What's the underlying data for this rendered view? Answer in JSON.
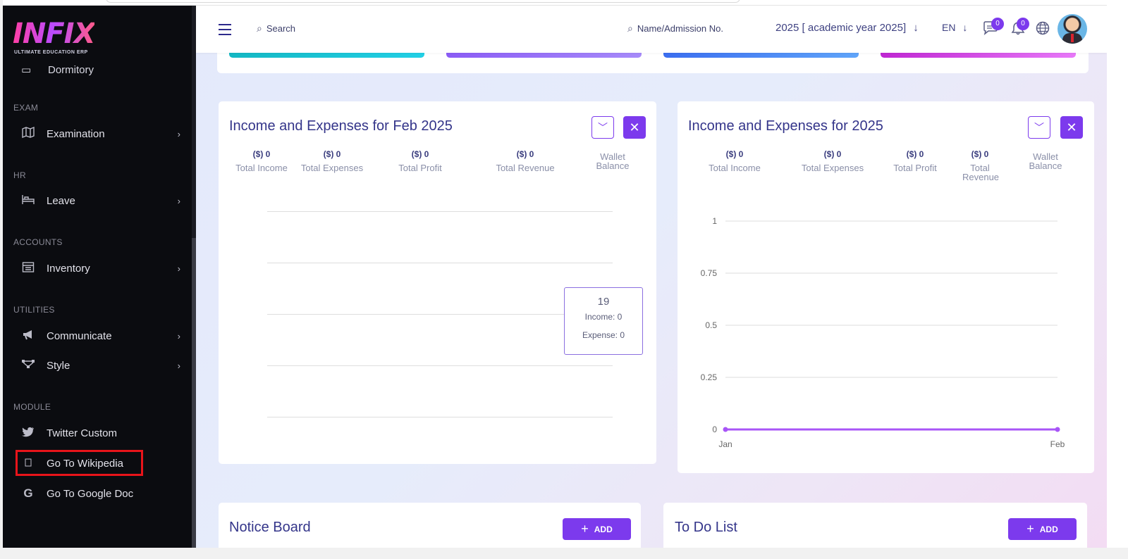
{
  "logo": {
    "brand": "INFIX",
    "tagline": "ULTIMATE EDUCATION ERP"
  },
  "sidebar": {
    "partial_item": "Dormitory",
    "sections": {
      "exam": "EXAM",
      "hr": "HR",
      "accounts": "ACCOUNTS",
      "utilities": "UTILITIES",
      "module": "MODULE"
    },
    "items": {
      "examination": "Examination",
      "leave": "Leave",
      "inventory": "Inventory",
      "communicate": "Communicate",
      "style": "Style",
      "twitter": "Twitter Custom",
      "wikipedia": "Go To Wikipedia",
      "google_doc": "Go To Google Doc"
    }
  },
  "header": {
    "search_placeholder": "Search",
    "search_student_placeholder": "Name/Admission No.",
    "academic_year": "2025 [ academic year 2025]",
    "language": "EN",
    "messages_count": "0",
    "notifications_count": "0"
  },
  "monthly_card": {
    "title": "Income and Expenses for Feb 2025",
    "stats": [
      {
        "value": "($) 0",
        "label": "Total Income"
      },
      {
        "value": "($) 0",
        "label": "Total Expenses"
      },
      {
        "value": "($) 0",
        "label": "Total Profit"
      },
      {
        "value": "($) 0",
        "label": "Total Revenue"
      },
      {
        "value": "",
        "label": "Wallet Balance"
      }
    ],
    "tooltip": {
      "day": "19",
      "income": "Income: 0",
      "expense": "Expense: 0"
    }
  },
  "yearly_card": {
    "title": "Income and Expenses for 2025",
    "stats": [
      {
        "value": "($) 0",
        "label": "Total Income"
      },
      {
        "value": "($) 0",
        "label": "Total Expenses"
      },
      {
        "value": "($) 0",
        "label": "Total Profit"
      },
      {
        "value": "($) 0",
        "label": "Total Revenue"
      },
      {
        "value": "",
        "label": "Wallet Balance"
      }
    ]
  },
  "chart_data": {
    "type": "line",
    "x": [
      "Jan",
      "Feb"
    ],
    "series": [
      {
        "values": [
          0,
          0
        ],
        "color": "#a855f7"
      }
    ],
    "y_ticks": [
      "1",
      "0.75",
      "0.5",
      "0.25",
      "0"
    ],
    "ylim": [
      0,
      1
    ],
    "grid": true
  },
  "notice_board": {
    "title": "Notice Board",
    "add_label": "ADD"
  },
  "todo_list": {
    "title": "To Do List",
    "add_label": "ADD"
  },
  "colors": {
    "accent": "#7c3aed",
    "sidebar_bg": "#0b0c10",
    "title": "#34358a"
  }
}
